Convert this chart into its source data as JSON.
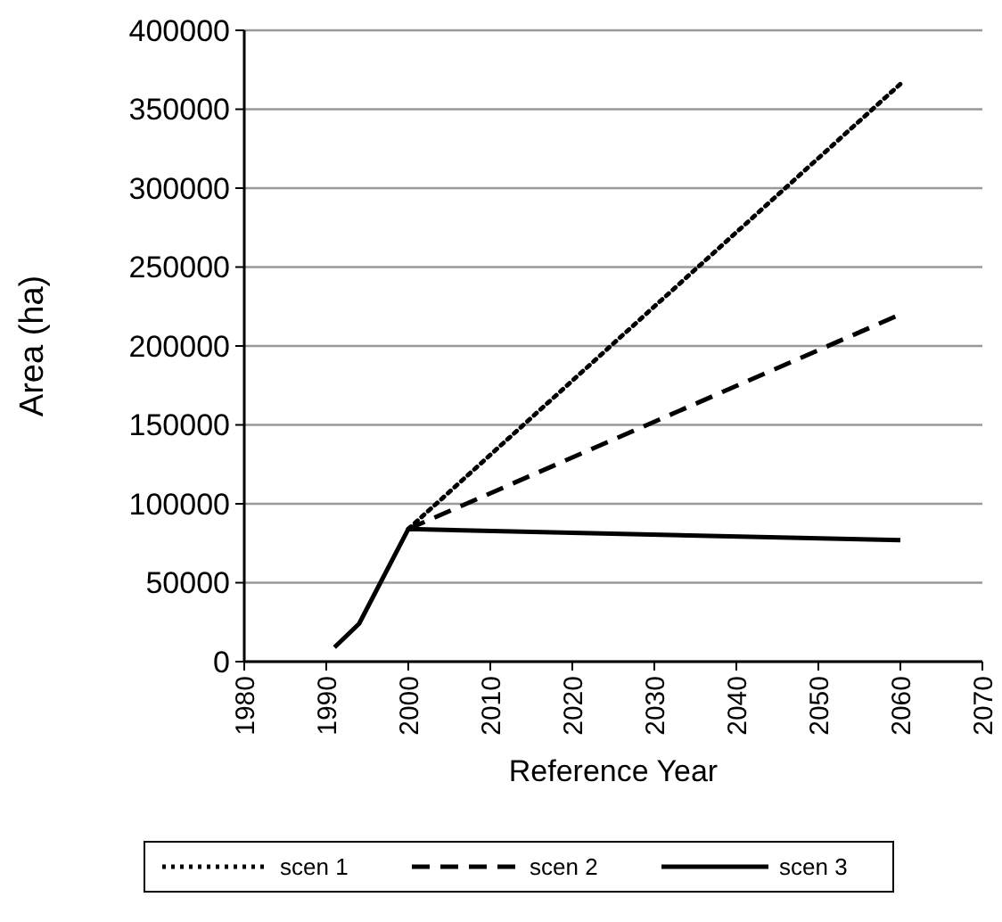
{
  "chart_data": {
    "type": "line",
    "xlabel": "Reference Year",
    "ylabel": "Area (ha)",
    "xlim": [
      1980,
      2070
    ],
    "xticks": [
      1980,
      1990,
      2000,
      2010,
      2020,
      2030,
      2040,
      2050,
      2060,
      2070
    ],
    "ylim": [
      0,
      400000
    ],
    "yticks": [
      0,
      50000,
      100000,
      150000,
      200000,
      250000,
      300000,
      350000,
      400000
    ],
    "grid": "y",
    "legend": "bottom",
    "series": [
      {
        "name": "scen 1",
        "color": "#000000",
        "line_style": "dotted",
        "x": [
          2000,
          2060
        ],
        "values": [
          84000,
          366000
        ]
      },
      {
        "name": "scen 2",
        "color": "#000000",
        "line_style": "dashed",
        "x": [
          2000,
          2060
        ],
        "values": [
          84000,
          220000
        ]
      },
      {
        "name": "scen 3",
        "color": "#000000",
        "line_style": "solid",
        "x": [
          1991,
          1994,
          2000,
          2060
        ],
        "values": [
          9000,
          24000,
          84000,
          77000
        ]
      }
    ]
  }
}
